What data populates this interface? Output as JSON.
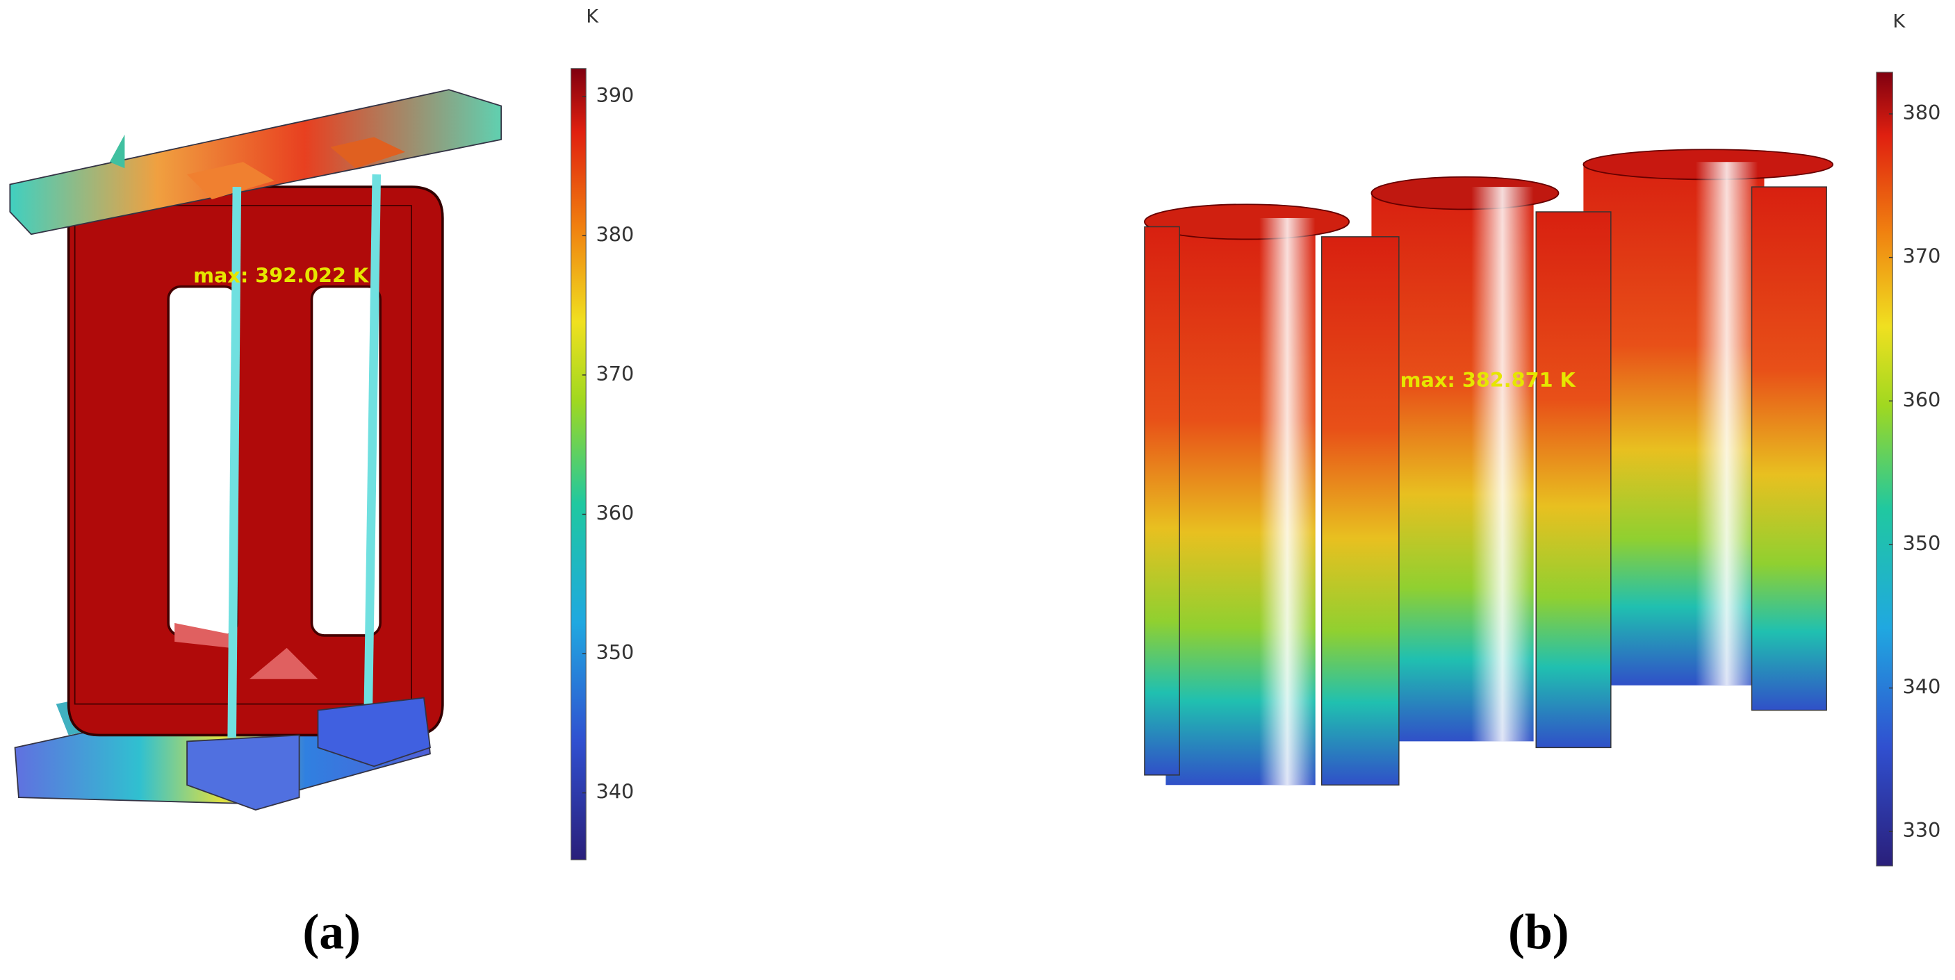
{
  "panels": [
    {
      "unit": "K",
      "max_annotation": "max: 392.022 K",
      "caption": "(a)",
      "colorbar": {
        "range": [
          335.2,
          392
        ],
        "ticks": [
          340,
          350,
          360,
          370,
          380,
          390
        ]
      }
    },
    {
      "unit": "K",
      "max_annotation": "max: 382.871 K",
      "caption": "(b)",
      "colorbar": {
        "range": [
          327.6,
          382.9
        ],
        "ticks": [
          330,
          340,
          350,
          360,
          370,
          380
        ]
      }
    }
  ]
}
